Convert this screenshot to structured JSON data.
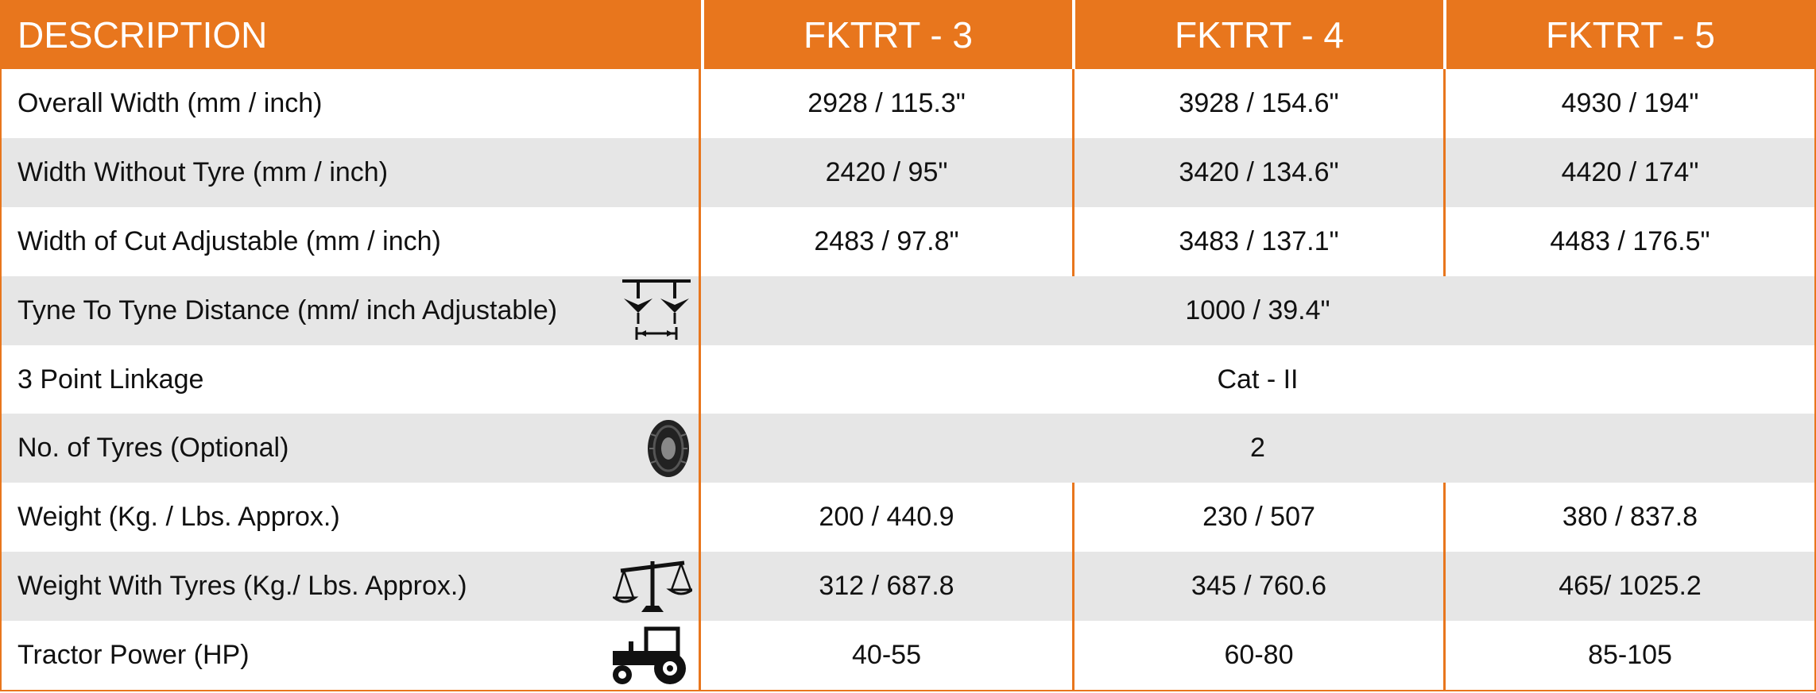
{
  "table": {
    "headers": [
      "DESCRIPTION",
      "FKTRT - 3",
      "FKTRT - 4",
      "FKTRT - 5"
    ],
    "rows": [
      {
        "label": "Overall Width (mm / inch)",
        "values": [
          "2928 / 115.3\"",
          "3928 / 154.6\"",
          "4930 / 194\""
        ]
      },
      {
        "label": "Width Without Tyre (mm / inch)",
        "values": [
          "2420 / 95\"",
          "3420 / 134.6\"",
          "4420 / 174\""
        ]
      },
      {
        "label": "Width of Cut Adjustable (mm / inch)",
        "values": [
          "2483 / 97.8\"",
          "3483 / 137.1\"",
          "4483 / 176.5\""
        ]
      },
      {
        "label": "Tyne To Tyne Distance (mm/ inch Adjustable)",
        "value": "1000 / 39.4\"",
        "icon": "tyne-distance-icon"
      },
      {
        "label": "3 Point Linkage",
        "value": "Cat - II"
      },
      {
        "label": "No. of Tyres (Optional)",
        "value": "2",
        "icon": "tyre-icon"
      },
      {
        "label": "Weight (Kg. / Lbs. Approx.)",
        "values": [
          "200 / 440.9",
          "230 / 507",
          "380 / 837.8"
        ]
      },
      {
        "label": "Weight With Tyres (Kg./ Lbs. Approx.)",
        "values": [
          "312 / 687.8",
          "345 / 760.6",
          "465/ 1025.2"
        ],
        "icon": "scale-icon"
      },
      {
        "label": "Tractor Power (HP)",
        "values": [
          "40-55",
          "60-80",
          "85-105"
        ],
        "icon": "tractor-icon"
      }
    ]
  },
  "colors": {
    "accent": "#E8761D",
    "row_shade": "#E6E6E6",
    "text": "#111111"
  }
}
